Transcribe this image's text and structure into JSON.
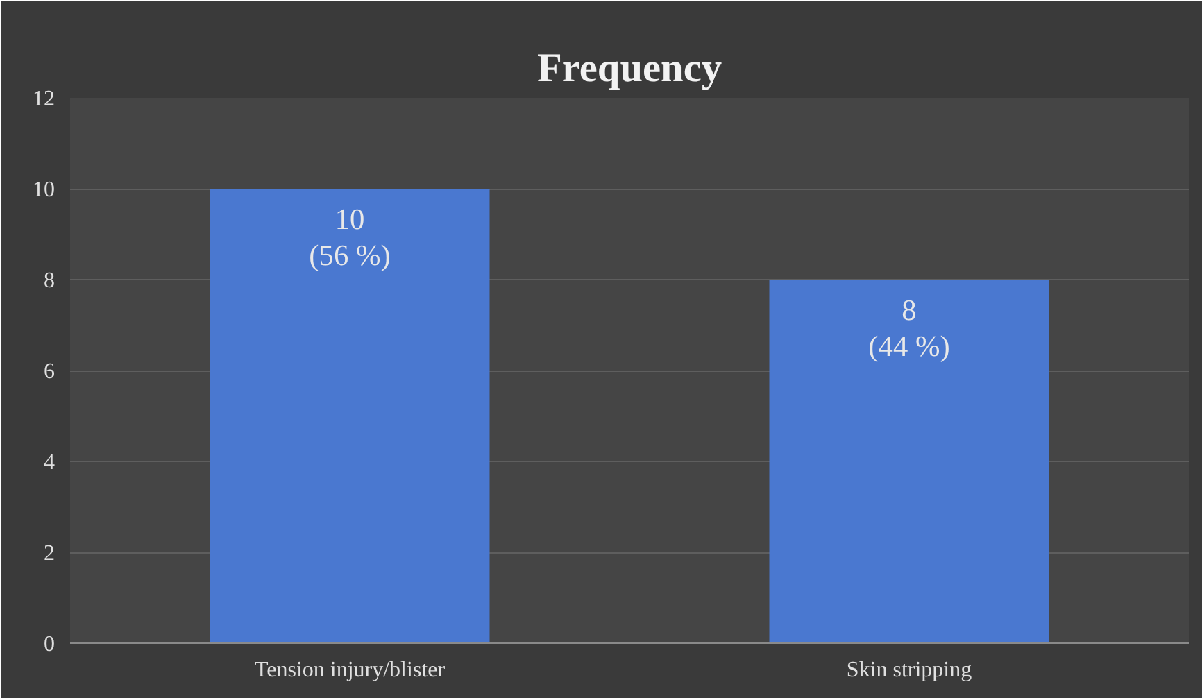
{
  "chart_data": {
    "type": "bar",
    "title": "Frequency",
    "categories": [
      "Tension injury/blister",
      "Skin stripping"
    ],
    "values": [
      10,
      8
    ],
    "color": "#4a78d0",
    "value_labels": [
      "10\n(56 %)",
      "8\n(44 %)"
    ],
    "ylim": [
      0,
      12
    ],
    "yticks": [
      0,
      2,
      4,
      6,
      8,
      10,
      12
    ],
    "grid": "y"
  }
}
